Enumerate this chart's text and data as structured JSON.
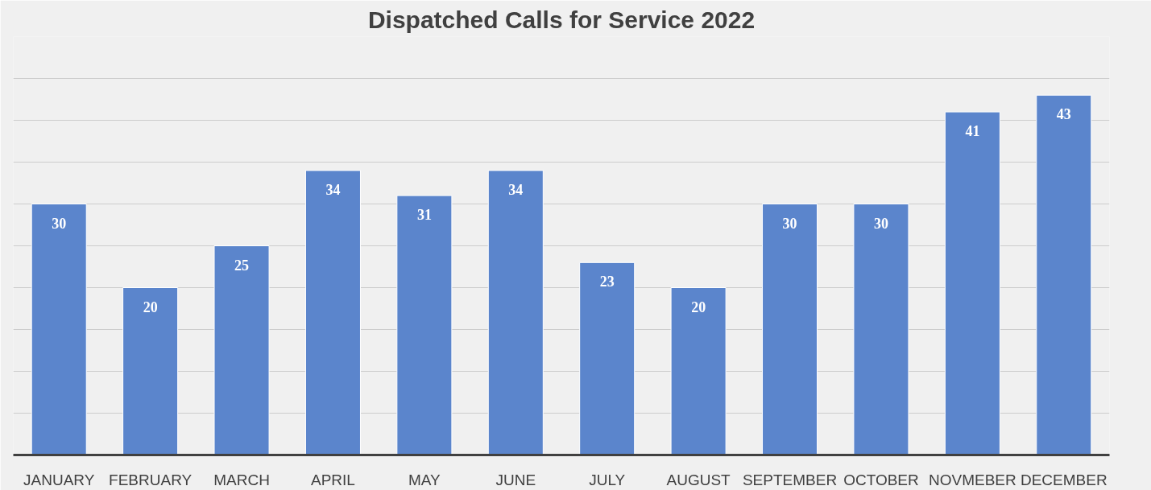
{
  "chart_data": {
    "type": "bar",
    "title": "Dispatched Calls for Service 2022",
    "categories": [
      "JANUARY",
      "FEBRUARY",
      "MARCH",
      "APRIL",
      "MAY",
      "JUNE",
      "JULY",
      "AUGUST",
      "SEPTEMBER",
      "OCTOBER",
      "NOVMEBER",
      "DECEMBER"
    ],
    "values": [
      30,
      20,
      25,
      34,
      31,
      34,
      23,
      20,
      30,
      30,
      41,
      43
    ],
    "color": "#5b85cc",
    "ylim": [
      0,
      50
    ],
    "yticks": [
      {
        "value": 0,
        "label": null
      },
      {
        "value": 5,
        "label": null
      },
      {
        "value": 10,
        "label": null
      },
      {
        "value": 15,
        "label": null
      },
      {
        "value": 20,
        "label": null
      },
      {
        "value": 25,
        "label": null
      },
      {
        "value": 30,
        "label": null
      },
      {
        "value": 35,
        "label": null
      },
      {
        "value": 40,
        "label": null
      },
      {
        "value": 45,
        "label": null
      },
      {
        "value": 50,
        "label": null
      }
    ],
    "grid": "y",
    "tick_labels": "x",
    "data_labels": true
  }
}
